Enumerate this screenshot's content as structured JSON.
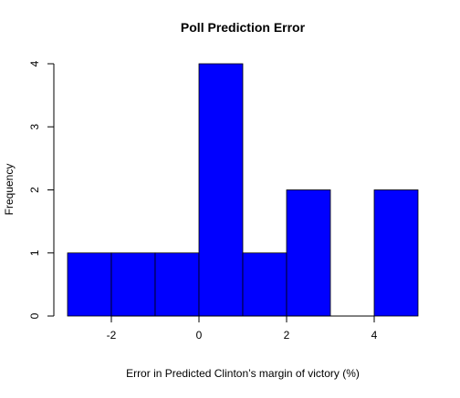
{
  "chart_data": {
    "type": "bar",
    "variant": "histogram",
    "title": "Poll Prediction Error",
    "xlabel": "Error in Predicted Clinton’s margin of victory (%)",
    "ylabel": "Frequency",
    "bins": [
      {
        "start": -3,
        "end": -2,
        "count": 1
      },
      {
        "start": -2,
        "end": -1,
        "count": 1
      },
      {
        "start": -1,
        "end": 0,
        "count": 1
      },
      {
        "start": 0,
        "end": 1,
        "count": 4
      },
      {
        "start": 1,
        "end": 2,
        "count": 1
      },
      {
        "start": 2,
        "end": 3,
        "count": 2
      },
      {
        "start": 3,
        "end": 4,
        "count": 0
      },
      {
        "start": 4,
        "end": 5,
        "count": 2
      }
    ],
    "xlim": [
      -3,
      5
    ],
    "ylim": [
      0,
      4
    ],
    "xticks": [
      -2,
      0,
      2,
      4
    ],
    "yticks": [
      0,
      1,
      2,
      3,
      4
    ],
    "grid": false,
    "legend": "none",
    "colors": {
      "bar_fill": "#0000ff",
      "bar_stroke": "#000000",
      "axis": "#000000"
    }
  }
}
